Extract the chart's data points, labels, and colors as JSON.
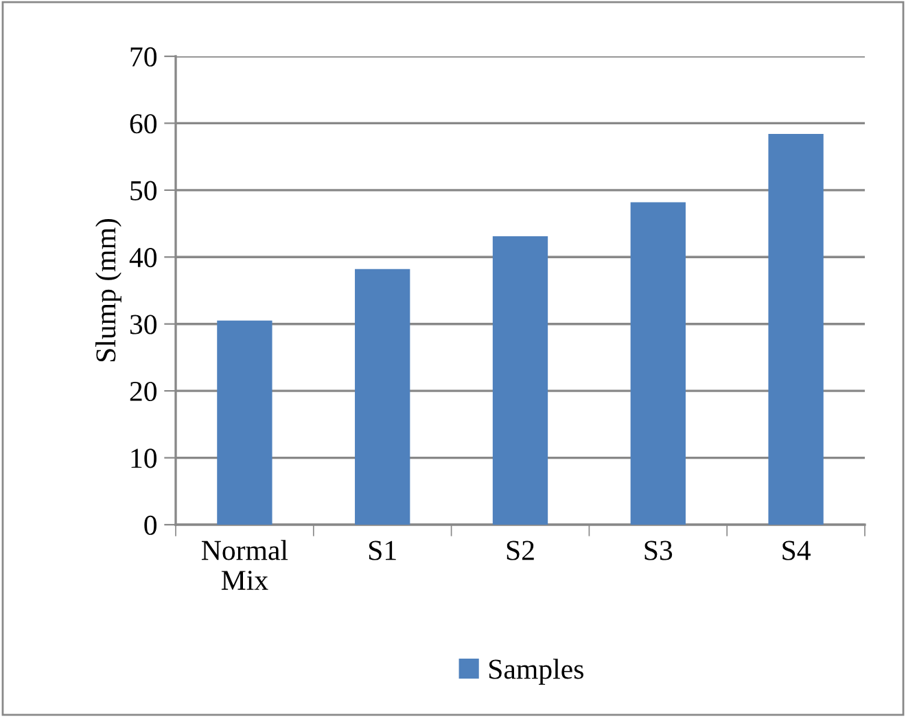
{
  "chart_data": {
    "type": "bar",
    "ylabel": "Slump (mm)",
    "categories": [
      "Normal Mix",
      "S1",
      "S2",
      "S3",
      "S4"
    ],
    "series": [
      {
        "name": "Samples",
        "color": "#4f81bd",
        "values": [
          30.5,
          38.2,
          43.1,
          48.2,
          58.4
        ]
      }
    ],
    "ylim": [
      0,
      70
    ],
    "yticks": [
      0,
      10,
      20,
      30,
      40,
      50,
      60,
      70
    ],
    "grid": "y",
    "legend": "bottom"
  }
}
